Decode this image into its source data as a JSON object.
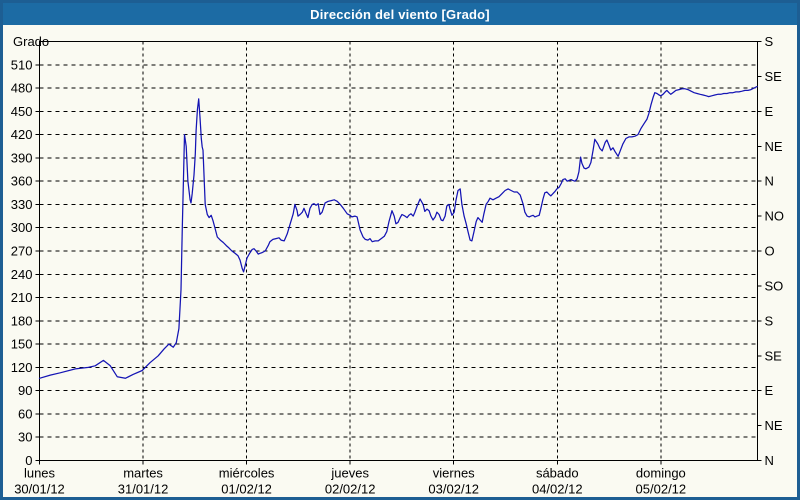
{
  "window": {
    "title": "Dirección del viento [Grado]"
  },
  "colors": {
    "titlebar": "#1c6ba4",
    "frame": "#1d5e93",
    "background": "#fafaf2",
    "grid": "#000000",
    "axis": "#000000",
    "line": "#1414b4",
    "title_text": "#ffffff",
    "label_text": "#000000"
  },
  "chart_data": {
    "type": "line",
    "title": "Dirección del viento [Grado]",
    "legend": "none",
    "grid": "dashed",
    "y_left": {
      "label": "Grado",
      "min": 0,
      "max": 540,
      "ticks": [
        0,
        30,
        60,
        90,
        120,
        150,
        180,
        210,
        240,
        270,
        300,
        330,
        360,
        390,
        420,
        450,
        480,
        510
      ]
    },
    "y_right": {
      "ticks": [
        {
          "value": 540,
          "label": "S"
        },
        {
          "value": 495,
          "label": "SE"
        },
        {
          "value": 450,
          "label": "E"
        },
        {
          "value": 405,
          "label": "NE"
        },
        {
          "value": 360,
          "label": "N"
        },
        {
          "value": 315,
          "label": "NO"
        },
        {
          "value": 270,
          "label": "O"
        },
        {
          "value": 225,
          "label": "SO"
        },
        {
          "value": 180,
          "label": "S"
        },
        {
          "value": 135,
          "label": "SE"
        },
        {
          "value": 90,
          "label": "E"
        },
        {
          "value": 45,
          "label": "NE"
        },
        {
          "value": 0,
          "label": "N"
        }
      ]
    },
    "x_axis": {
      "unit": "hours_from_monday_00",
      "min": 0,
      "max": 166.4,
      "day_ticks": [
        {
          "hour": 0,
          "name": "lunes",
          "date": "30/01/12"
        },
        {
          "hour": 24,
          "name": "martes",
          "date": "31/01/12"
        },
        {
          "hour": 48,
          "name": "miércoles",
          "date": "01/02/12"
        },
        {
          "hour": 72,
          "name": "jueves",
          "date": "02/02/12"
        },
        {
          "hour": 96,
          "name": "viernes",
          "date": "03/02/12"
        },
        {
          "hour": 120,
          "name": "sábado",
          "date": "04/02/12"
        },
        {
          "hour": 144,
          "name": "domingo",
          "date": "05/02/12"
        }
      ]
    },
    "series": [
      {
        "name": "Dirección del viento",
        "color": "#1414b4",
        "points": [
          [
            0,
            106
          ],
          [
            2.5,
            110
          ],
          [
            4.8,
            113
          ],
          [
            8.3,
            118
          ],
          [
            11.3,
            120
          ],
          [
            12.9,
            122
          ],
          [
            14.8,
            129
          ],
          [
            16.4,
            122
          ],
          [
            18,
            108
          ],
          [
            19.9,
            106
          ],
          [
            21.7,
            111
          ],
          [
            23.8,
            116
          ],
          [
            25.6,
            126
          ],
          [
            27.5,
            135
          ],
          [
            28.9,
            144
          ],
          [
            30,
            150
          ],
          [
            31,
            146
          ],
          [
            31.7,
            152
          ],
          [
            32.3,
            170
          ],
          [
            32.8,
            220
          ],
          [
            33.1,
            300
          ],
          [
            33.4,
            370
          ],
          [
            33.6,
            420
          ],
          [
            34,
            405
          ],
          [
            34.4,
            360
          ],
          [
            34.9,
            336
          ],
          [
            35.1,
            332
          ],
          [
            35.4,
            344
          ],
          [
            35.8,
            368
          ],
          [
            36.1,
            395
          ],
          [
            36.3,
            425
          ],
          [
            36.6,
            452
          ],
          [
            36.9,
            466
          ],
          [
            37.2,
            442
          ],
          [
            37.5,
            415
          ],
          [
            37.7,
            404
          ],
          [
            37.9,
            400
          ],
          [
            38.4,
            330
          ],
          [
            38.9,
            317
          ],
          [
            39.3,
            313
          ],
          [
            39.8,
            316
          ],
          [
            40.2,
            309
          ],
          [
            40.7,
            299
          ],
          [
            41.2,
            288
          ],
          [
            41.9,
            284
          ],
          [
            42.6,
            281
          ],
          [
            43.3,
            277
          ],
          [
            43.9,
            274
          ],
          [
            44.6,
            270
          ],
          [
            45.3,
            267
          ],
          [
            46,
            264
          ],
          [
            46.5,
            258
          ],
          [
            47,
            247
          ],
          [
            47.3,
            243
          ],
          [
            47.7,
            252
          ],
          [
            48.1,
            261
          ],
          [
            48.6,
            266
          ],
          [
            48.8,
            268
          ],
          [
            49.3,
            272
          ],
          [
            49.7,
            273
          ],
          [
            50.2,
            270
          ],
          [
            50.7,
            266
          ],
          [
            51.1,
            267
          ],
          [
            51.6,
            268
          ],
          [
            52.3,
            270
          ],
          [
            53,
            277
          ],
          [
            53.4,
            282
          ],
          [
            54.1,
            285
          ],
          [
            54.8,
            286
          ],
          [
            55.5,
            287
          ],
          [
            56,
            284
          ],
          [
            56.7,
            283
          ],
          [
            57.4,
            292
          ],
          [
            58.1,
            305
          ],
          [
            58.8,
            318
          ],
          [
            59.2,
            330
          ],
          [
            59.7,
            322
          ],
          [
            59.9,
            315
          ],
          [
            60.4,
            317
          ],
          [
            60.9,
            320
          ],
          [
            61.3,
            325
          ],
          [
            61.8,
            318
          ],
          [
            62.2,
            313
          ],
          [
            62.7,
            325
          ],
          [
            63.2,
            330
          ],
          [
            63.6,
            331
          ],
          [
            64.1,
            329
          ],
          [
            64.6,
            331
          ],
          [
            65,
            317
          ],
          [
            65.5,
            320
          ],
          [
            66.2,
            332
          ],
          [
            66.9,
            334
          ],
          [
            67.6,
            335
          ],
          [
            68.3,
            336
          ],
          [
            69,
            334
          ],
          [
            69.7,
            330
          ],
          [
            70.4,
            325
          ],
          [
            70.8,
            322
          ],
          [
            71.3,
            318
          ],
          [
            72,
            316
          ],
          [
            72.4,
            314
          ],
          [
            73.1,
            315
          ],
          [
            73.6,
            314
          ],
          [
            74.3,
            297
          ],
          [
            75,
            288
          ],
          [
            75.5,
            285
          ],
          [
            76.1,
            284
          ],
          [
            76.6,
            286
          ],
          [
            77.1,
            282
          ],
          [
            77.8,
            283
          ],
          [
            78.5,
            283
          ],
          [
            79.2,
            286
          ],
          [
            79.9,
            289
          ],
          [
            80.5,
            295
          ],
          [
            81,
            308
          ],
          [
            81.7,
            322
          ],
          [
            82.2,
            315
          ],
          [
            82.6,
            305
          ],
          [
            83.1,
            307
          ],
          [
            83.6,
            313
          ],
          [
            84,
            317
          ],
          [
            84.7,
            315
          ],
          [
            85.2,
            313
          ],
          [
            85.6,
            316
          ],
          [
            86.1,
            318
          ],
          [
            86.6,
            315
          ],
          [
            87,
            320
          ],
          [
            87.5,
            328
          ],
          [
            88.2,
            337
          ],
          [
            88.9,
            330
          ],
          [
            89.3,
            321
          ],
          [
            89.8,
            324
          ],
          [
            90.3,
            322
          ],
          [
            90.7,
            315
          ],
          [
            91.2,
            310
          ],
          [
            91.7,
            314
          ],
          [
            92.1,
            320
          ],
          [
            92.6,
            317
          ],
          [
            93.1,
            310
          ],
          [
            93.5,
            309
          ],
          [
            94,
            315
          ],
          [
            94.4,
            328
          ],
          [
            94.9,
            330
          ],
          [
            95.1,
            325
          ],
          [
            95.6,
            316
          ],
          [
            96.1,
            320
          ],
          [
            96.5,
            335
          ],
          [
            97,
            348
          ],
          [
            97.5,
            350
          ],
          [
            97.9,
            330
          ],
          [
            98.4,
            315
          ],
          [
            98.9,
            305
          ],
          [
            99.3,
            295
          ],
          [
            99.8,
            284
          ],
          [
            100.2,
            283
          ],
          [
            100.7,
            295
          ],
          [
            101.2,
            308
          ],
          [
            101.6,
            313
          ],
          [
            102.1,
            310
          ],
          [
            102.6,
            307
          ],
          [
            103,
            318
          ],
          [
            103.5,
            330
          ],
          [
            104,
            334
          ],
          [
            104.4,
            338
          ],
          [
            105.1,
            336
          ],
          [
            105.8,
            338
          ],
          [
            106.5,
            340
          ],
          [
            107.2,
            344
          ],
          [
            107.9,
            348
          ],
          [
            108.6,
            350
          ],
          [
            109.3,
            348
          ],
          [
            110,
            346
          ],
          [
            110.7,
            346
          ],
          [
            111.4,
            342
          ],
          [
            112.1,
            330
          ],
          [
            112.5,
            320
          ],
          [
            113,
            315
          ],
          [
            113.5,
            314
          ],
          [
            113.9,
            315
          ],
          [
            114.4,
            316
          ],
          [
            114.8,
            314
          ],
          [
            115.3,
            315
          ],
          [
            115.8,
            316
          ],
          [
            116.2,
            325
          ],
          [
            116.7,
            337
          ],
          [
            117.1,
            345
          ],
          [
            117.6,
            346
          ],
          [
            118.1,
            343
          ],
          [
            118.5,
            341
          ],
          [
            119,
            344
          ],
          [
            119.5,
            347
          ],
          [
            119.9,
            350
          ],
          [
            120.4,
            352
          ],
          [
            120.9,
            357
          ],
          [
            121.3,
            362
          ],
          [
            121.8,
            363
          ],
          [
            122.3,
            360
          ],
          [
            122.7,
            361
          ],
          [
            123.2,
            362
          ],
          [
            123.6,
            361
          ],
          [
            124.1,
            360
          ],
          [
            124.6,
            363
          ],
          [
            125,
            372
          ],
          [
            125.4,
            391
          ],
          [
            125.7,
            383
          ],
          [
            126.2,
            377
          ],
          [
            126.6,
            376
          ],
          [
            127.3,
            378
          ],
          [
            127.8,
            384
          ],
          [
            128.3,
            400
          ],
          [
            128.7,
            414
          ],
          [
            129.4,
            408
          ],
          [
            129.9,
            402
          ],
          [
            130.4,
            399
          ],
          [
            131.1,
            410
          ],
          [
            131.5,
            413
          ],
          [
            132,
            406
          ],
          [
            132.4,
            400
          ],
          [
            132.9,
            403
          ],
          [
            133.4,
            398
          ],
          [
            134.1,
            392
          ],
          [
            134.5,
            398
          ],
          [
            135.2,
            408
          ],
          [
            135.9,
            415
          ],
          [
            136.6,
            417
          ],
          [
            137.3,
            417
          ],
          [
            138,
            418
          ],
          [
            138.7,
            420
          ],
          [
            139.4,
            428
          ],
          [
            140.1,
            434
          ],
          [
            140.8,
            440
          ],
          [
            141.2,
            447
          ],
          [
            141.7,
            458
          ],
          [
            142.2,
            468
          ],
          [
            142.6,
            474
          ],
          [
            143.1,
            473
          ],
          [
            143.6,
            471
          ],
          [
            144,
            470
          ],
          [
            144.5,
            472
          ],
          [
            145,
            475
          ],
          [
            145.4,
            477
          ],
          [
            145.9,
            474
          ],
          [
            146.3,
            472
          ],
          [
            146.8,
            474
          ],
          [
            147.5,
            477
          ],
          [
            148.2,
            478
          ],
          [
            148.9,
            479
          ],
          [
            149.6,
            479
          ],
          [
            150.3,
            478
          ],
          [
            151,
            476
          ],
          [
            151.7,
            474
          ],
          [
            152.4,
            473
          ],
          [
            153.1,
            472
          ],
          [
            153.8,
            471
          ],
          [
            154.5,
            470
          ],
          [
            155.1,
            469
          ],
          [
            155.8,
            470
          ],
          [
            156.5,
            471
          ],
          [
            157.2,
            472
          ],
          [
            157.9,
            472
          ],
          [
            158.6,
            473
          ],
          [
            159.3,
            473
          ],
          [
            160,
            474
          ],
          [
            160.7,
            474
          ],
          [
            161.4,
            475
          ],
          [
            162.1,
            475
          ],
          [
            162.8,
            476
          ],
          [
            163.5,
            477
          ],
          [
            164.2,
            477
          ],
          [
            164.9,
            478
          ],
          [
            165.6,
            480
          ],
          [
            166.3,
            482
          ]
        ]
      }
    ]
  }
}
